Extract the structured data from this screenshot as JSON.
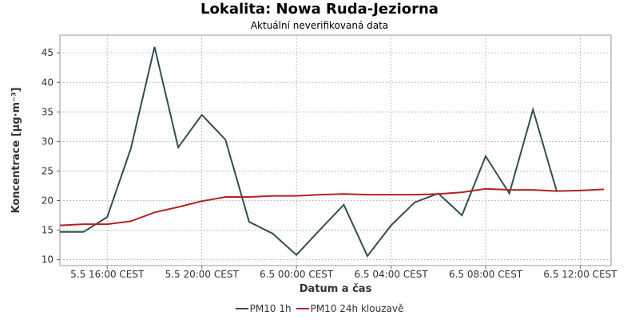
{
  "chart_data": {
    "type": "line",
    "title": "Lokalita: Nowa Ruda-Jeziorna",
    "subtitle": "Aktuální neverifikovaná data",
    "xlabel": "Datum a čas",
    "ylabel": "Koncentrace [µg·m⁻³]",
    "xlim": [
      0,
      23.3
    ],
    "ylim": [
      9,
      48
    ],
    "yticks": [
      10,
      15,
      20,
      25,
      30,
      35,
      40,
      45
    ],
    "xticks": [
      {
        "x": 2,
        "label": "5.5 16:00 CEST"
      },
      {
        "x": 6,
        "label": "5.5 20:00 CEST"
      },
      {
        "x": 10,
        "label": "6.5 00:00 CEST"
      },
      {
        "x": 14,
        "label": "6.5 04:00 CEST"
      },
      {
        "x": 18,
        "label": "6.5 08:00 CEST"
      },
      {
        "x": 22,
        "label": "6.5 12:00 CEST"
      }
    ],
    "grid": true,
    "legend_position": "bottom",
    "series": [
      {
        "name": "PM10 1h",
        "color": "#2f4f4f",
        "x": [
          0,
          1,
          2,
          3,
          4,
          5,
          6,
          7,
          8,
          9,
          10,
          11,
          12,
          13,
          14,
          15,
          16,
          17,
          18,
          19,
          20,
          21
        ],
        "y": [
          14.7,
          14.7,
          17.2,
          28.8,
          46.0,
          29.0,
          34.5,
          30.3,
          16.4,
          14.4,
          10.8,
          15.1,
          19.3,
          10.6,
          15.8,
          19.7,
          21.2,
          17.5,
          27.5,
          21.2,
          35.4,
          21.6
        ]
      },
      {
        "name": "PM10 24h klouzavě",
        "color": "#b22222",
        "x": [
          0,
          1,
          2,
          3,
          4,
          5,
          6,
          7,
          8,
          9,
          10,
          11,
          12,
          13,
          14,
          15,
          16,
          17,
          18,
          19,
          20,
          21,
          22,
          23
        ],
        "y": [
          15.8,
          16.0,
          16.0,
          16.5,
          18.0,
          18.9,
          19.9,
          20.6,
          20.6,
          20.8,
          20.8,
          21.0,
          21.1,
          21.0,
          21.0,
          21.0,
          21.1,
          21.4,
          22.0,
          21.8,
          21.8,
          21.6,
          21.7,
          21.9
        ]
      }
    ]
  }
}
